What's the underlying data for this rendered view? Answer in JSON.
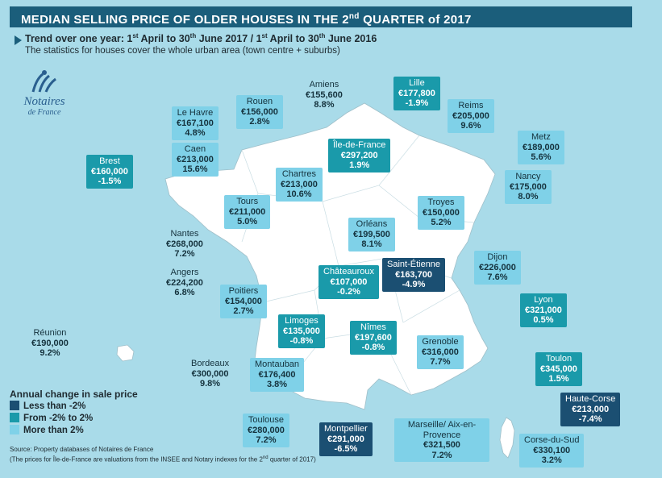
{
  "header": {
    "title": "MEDIAN SELLING PRICE OF OLDER HOUSES IN THE 2",
    "title_sup": "nd",
    "title_end": " QUARTER of 2017"
  },
  "trend": {
    "part1": "Trend over one year: 1",
    "sup1": "st",
    "part2": " April to 30",
    "sup2": "th",
    "part3": " June 2017 / 1",
    "sup3": "st",
    "part4": " April to 30",
    "sup4": "th",
    "part5": " June 2016"
  },
  "stats_note": "The statistics for houses cover the whole urban area (town centre + suburbs)",
  "logo": {
    "name": "Notaires",
    "sub": "de France"
  },
  "colors": {
    "light": "#7fd1e8",
    "mid": "#1a9aaa",
    "dark": "#1b4f72",
    "land": "#ffffff",
    "sea": "#a9dbe9"
  },
  "cities": [
    {
      "id": "amiens",
      "name": "Amiens",
      "price": "€155,600",
      "change": "8.8%",
      "cat": "plain"
    },
    {
      "id": "lille",
      "name": "Lille",
      "price": "€177,800",
      "change": "-1.9%",
      "cat": "mid"
    },
    {
      "id": "rouen",
      "name": "Rouen",
      "price": "€156,000",
      "change": "2.8%",
      "cat": "light"
    },
    {
      "id": "le-havre",
      "name": "Le Havre",
      "price": "€167,100",
      "change": "4.8%",
      "cat": "light"
    },
    {
      "id": "reims",
      "name": "Reims",
      "price": "€205,000",
      "change": "9.6%",
      "cat": "light"
    },
    {
      "id": "caen",
      "name": "Caen",
      "price": "€213,000",
      "change": "15.6%",
      "cat": "light"
    },
    {
      "id": "ile-de-france",
      "name": "Île-de-France",
      "price": "€297,200",
      "change": "1.9%",
      "cat": "mid"
    },
    {
      "id": "metz",
      "name": "Metz",
      "price": "€189,000",
      "change": "5.6%",
      "cat": "light"
    },
    {
      "id": "brest",
      "name": "Brest",
      "price": "€160,000",
      "change": "-1.5%",
      "cat": "mid"
    },
    {
      "id": "chartres",
      "name": "Chartres",
      "price": "€213,000",
      "change": "10.6%",
      "cat": "light"
    },
    {
      "id": "nancy",
      "name": "Nancy",
      "price": "€175,000",
      "change": "8.0%",
      "cat": "light"
    },
    {
      "id": "tours",
      "name": "Tours",
      "price": "€211,000",
      "change": "5.0%",
      "cat": "light"
    },
    {
      "id": "troyes",
      "name": "Troyes",
      "price": "€150,000",
      "change": "5.2%",
      "cat": "light"
    },
    {
      "id": "orleans",
      "name": "Orléans",
      "price": "€199,500",
      "change": "8.1%",
      "cat": "light"
    },
    {
      "id": "nantes",
      "name": "Nantes",
      "price": "€268,000",
      "change": "7.2%",
      "cat": "plain"
    },
    {
      "id": "dijon",
      "name": "Dijon",
      "price": "€226,000",
      "change": "7.6%",
      "cat": "light"
    },
    {
      "id": "angers",
      "name": "Angers",
      "price": "€224,200",
      "change": "6.8%",
      "cat": "plain"
    },
    {
      "id": "chateauroux",
      "name": "Châteauroux",
      "price": "€107,000",
      "change": "-0.2%",
      "cat": "mid"
    },
    {
      "id": "saint-etienne",
      "name": "Saint-Étienne",
      "price": "€163,700",
      "change": "-4.9%",
      "cat": "dark"
    },
    {
      "id": "poitiers",
      "name": "Poitiers",
      "price": "€154,000",
      "change": "2.7%",
      "cat": "light"
    },
    {
      "id": "lyon",
      "name": "Lyon",
      "price": "€321,000",
      "change": "0.5%",
      "cat": "mid"
    },
    {
      "id": "limoges",
      "name": "Limoges",
      "price": "€135,000",
      "change": "-0.8%",
      "cat": "mid"
    },
    {
      "id": "nimes",
      "name": "Nîmes",
      "price": "€197,600",
      "change": "-0.8%",
      "cat": "mid"
    },
    {
      "id": "reunion",
      "name": "Réunion",
      "price": "€190,000",
      "change": "9.2%",
      "cat": "plain"
    },
    {
      "id": "grenoble",
      "name": "Grenoble",
      "price": "€316,000",
      "change": "7.7%",
      "cat": "light"
    },
    {
      "id": "bordeaux",
      "name": "Bordeaux",
      "price": "€300,000",
      "change": "9.8%",
      "cat": "plain"
    },
    {
      "id": "montauban",
      "name": "Montauban",
      "price": "€176,400",
      "change": "3.8%",
      "cat": "light"
    },
    {
      "id": "toulon",
      "name": "Toulon",
      "price": "€345,000",
      "change": "1.5%",
      "cat": "mid"
    },
    {
      "id": "haute-corse",
      "name": "Haute-Corse",
      "price": "€213,000",
      "change": "-7.4%",
      "cat": "dark"
    },
    {
      "id": "toulouse",
      "name": "Toulouse",
      "price": "€280,000",
      "change": "7.2%",
      "cat": "light"
    },
    {
      "id": "montpellier",
      "name": "Montpellier",
      "price": "€291,000",
      "change": "-6.5%",
      "cat": "dark"
    },
    {
      "id": "marseille",
      "name": "Marseille/ Aix-en-Provence",
      "price": "€321,500",
      "change": "7.2%",
      "cat": "light"
    },
    {
      "id": "corse-du-sud",
      "name": "Corse-du-Sud",
      "price": "€330,100",
      "change": "3.2%",
      "cat": "light"
    }
  ],
  "legend": {
    "title": "Annual change in sale price",
    "items": [
      {
        "label": "Less than -2%",
        "color": "#1b4f72"
      },
      {
        "label": "From -2% to 2%",
        "color": "#1a9aaa"
      },
      {
        "label": "More than 2%",
        "color": "#7fd1e8"
      }
    ]
  },
  "source": {
    "line1": "Source: Property databases of Notaires de France",
    "line2a": "(The prices for Île-de-France are valuations from the INSEE and Notary indexes for the 2",
    "line2sup": "nd",
    "line2b": " quarter of 2017)"
  }
}
